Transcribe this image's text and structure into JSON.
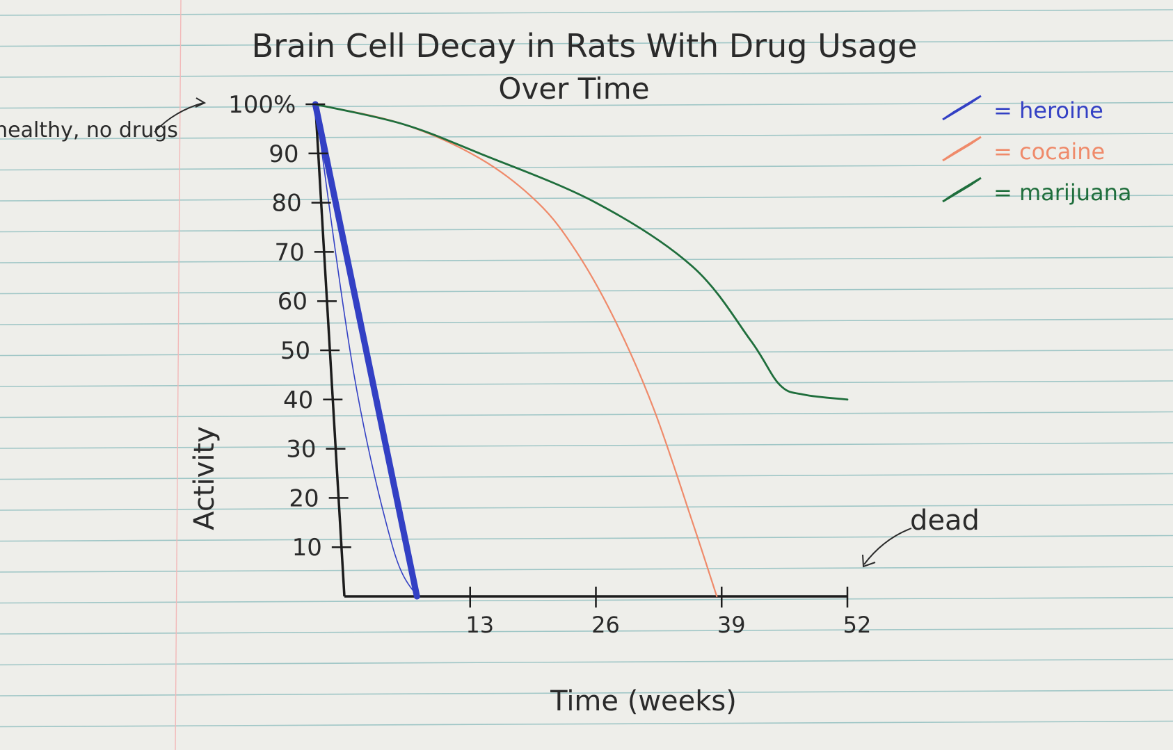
{
  "chart_data": {
    "type": "line",
    "title": "Brain Cell Decay in Rats With Drug Usage",
    "subtitle": "Over Time",
    "xlabel": "Time (weeks)",
    "ylabel": "Activity",
    "xlim": [
      0,
      52
    ],
    "ylim": [
      0,
      100
    ],
    "x_ticks": [
      13,
      26,
      39,
      52
    ],
    "y_ticks": [
      {
        "value": 100,
        "label": "100%"
      },
      {
        "value": 90,
        "label": "90"
      },
      {
        "value": 80,
        "label": "80"
      },
      {
        "value": 70,
        "label": "70"
      },
      {
        "value": 60,
        "label": "60"
      },
      {
        "value": 50,
        "label": "50"
      },
      {
        "value": 40,
        "label": "40"
      },
      {
        "value": 30,
        "label": "30"
      },
      {
        "value": 20,
        "label": "20"
      },
      {
        "value": 10,
        "label": "10"
      }
    ],
    "grid": false,
    "legend_position": "top-right",
    "series": [
      {
        "name": "heroine",
        "color": "#3340c4",
        "x": [
          -3,
          7.5
        ],
        "y": [
          100,
          0
        ]
      },
      {
        "name": "cocaine",
        "color": "#ef8a6a",
        "x": [
          -3,
          6,
          14,
          20,
          24,
          28,
          32,
          36,
          38.5
        ],
        "y": [
          100,
          96,
          89,
          80,
          70,
          56,
          38,
          15,
          0
        ]
      },
      {
        "name": "marijuana",
        "color": "#1f6e3c",
        "x": [
          -3,
          6,
          14,
          26,
          36,
          42,
          45,
          47.5,
          52
        ],
        "y": [
          100,
          96,
          90,
          80,
          67,
          52,
          43,
          41,
          40
        ]
      }
    ],
    "annotations": [
      {
        "text": "healthy, no drugs",
        "points_to": {
          "x": -3,
          "y": 100
        }
      },
      {
        "text": "dead",
        "points_to": {
          "x": 52,
          "y": 0
        }
      }
    ],
    "legend_items": [
      {
        "text": "= heroine",
        "color": "#3340c4"
      },
      {
        "text": "= cocaine",
        "color": "#ef8a6a"
      },
      {
        "text": "= marijuana",
        "color": "#1f6e3c"
      }
    ]
  }
}
